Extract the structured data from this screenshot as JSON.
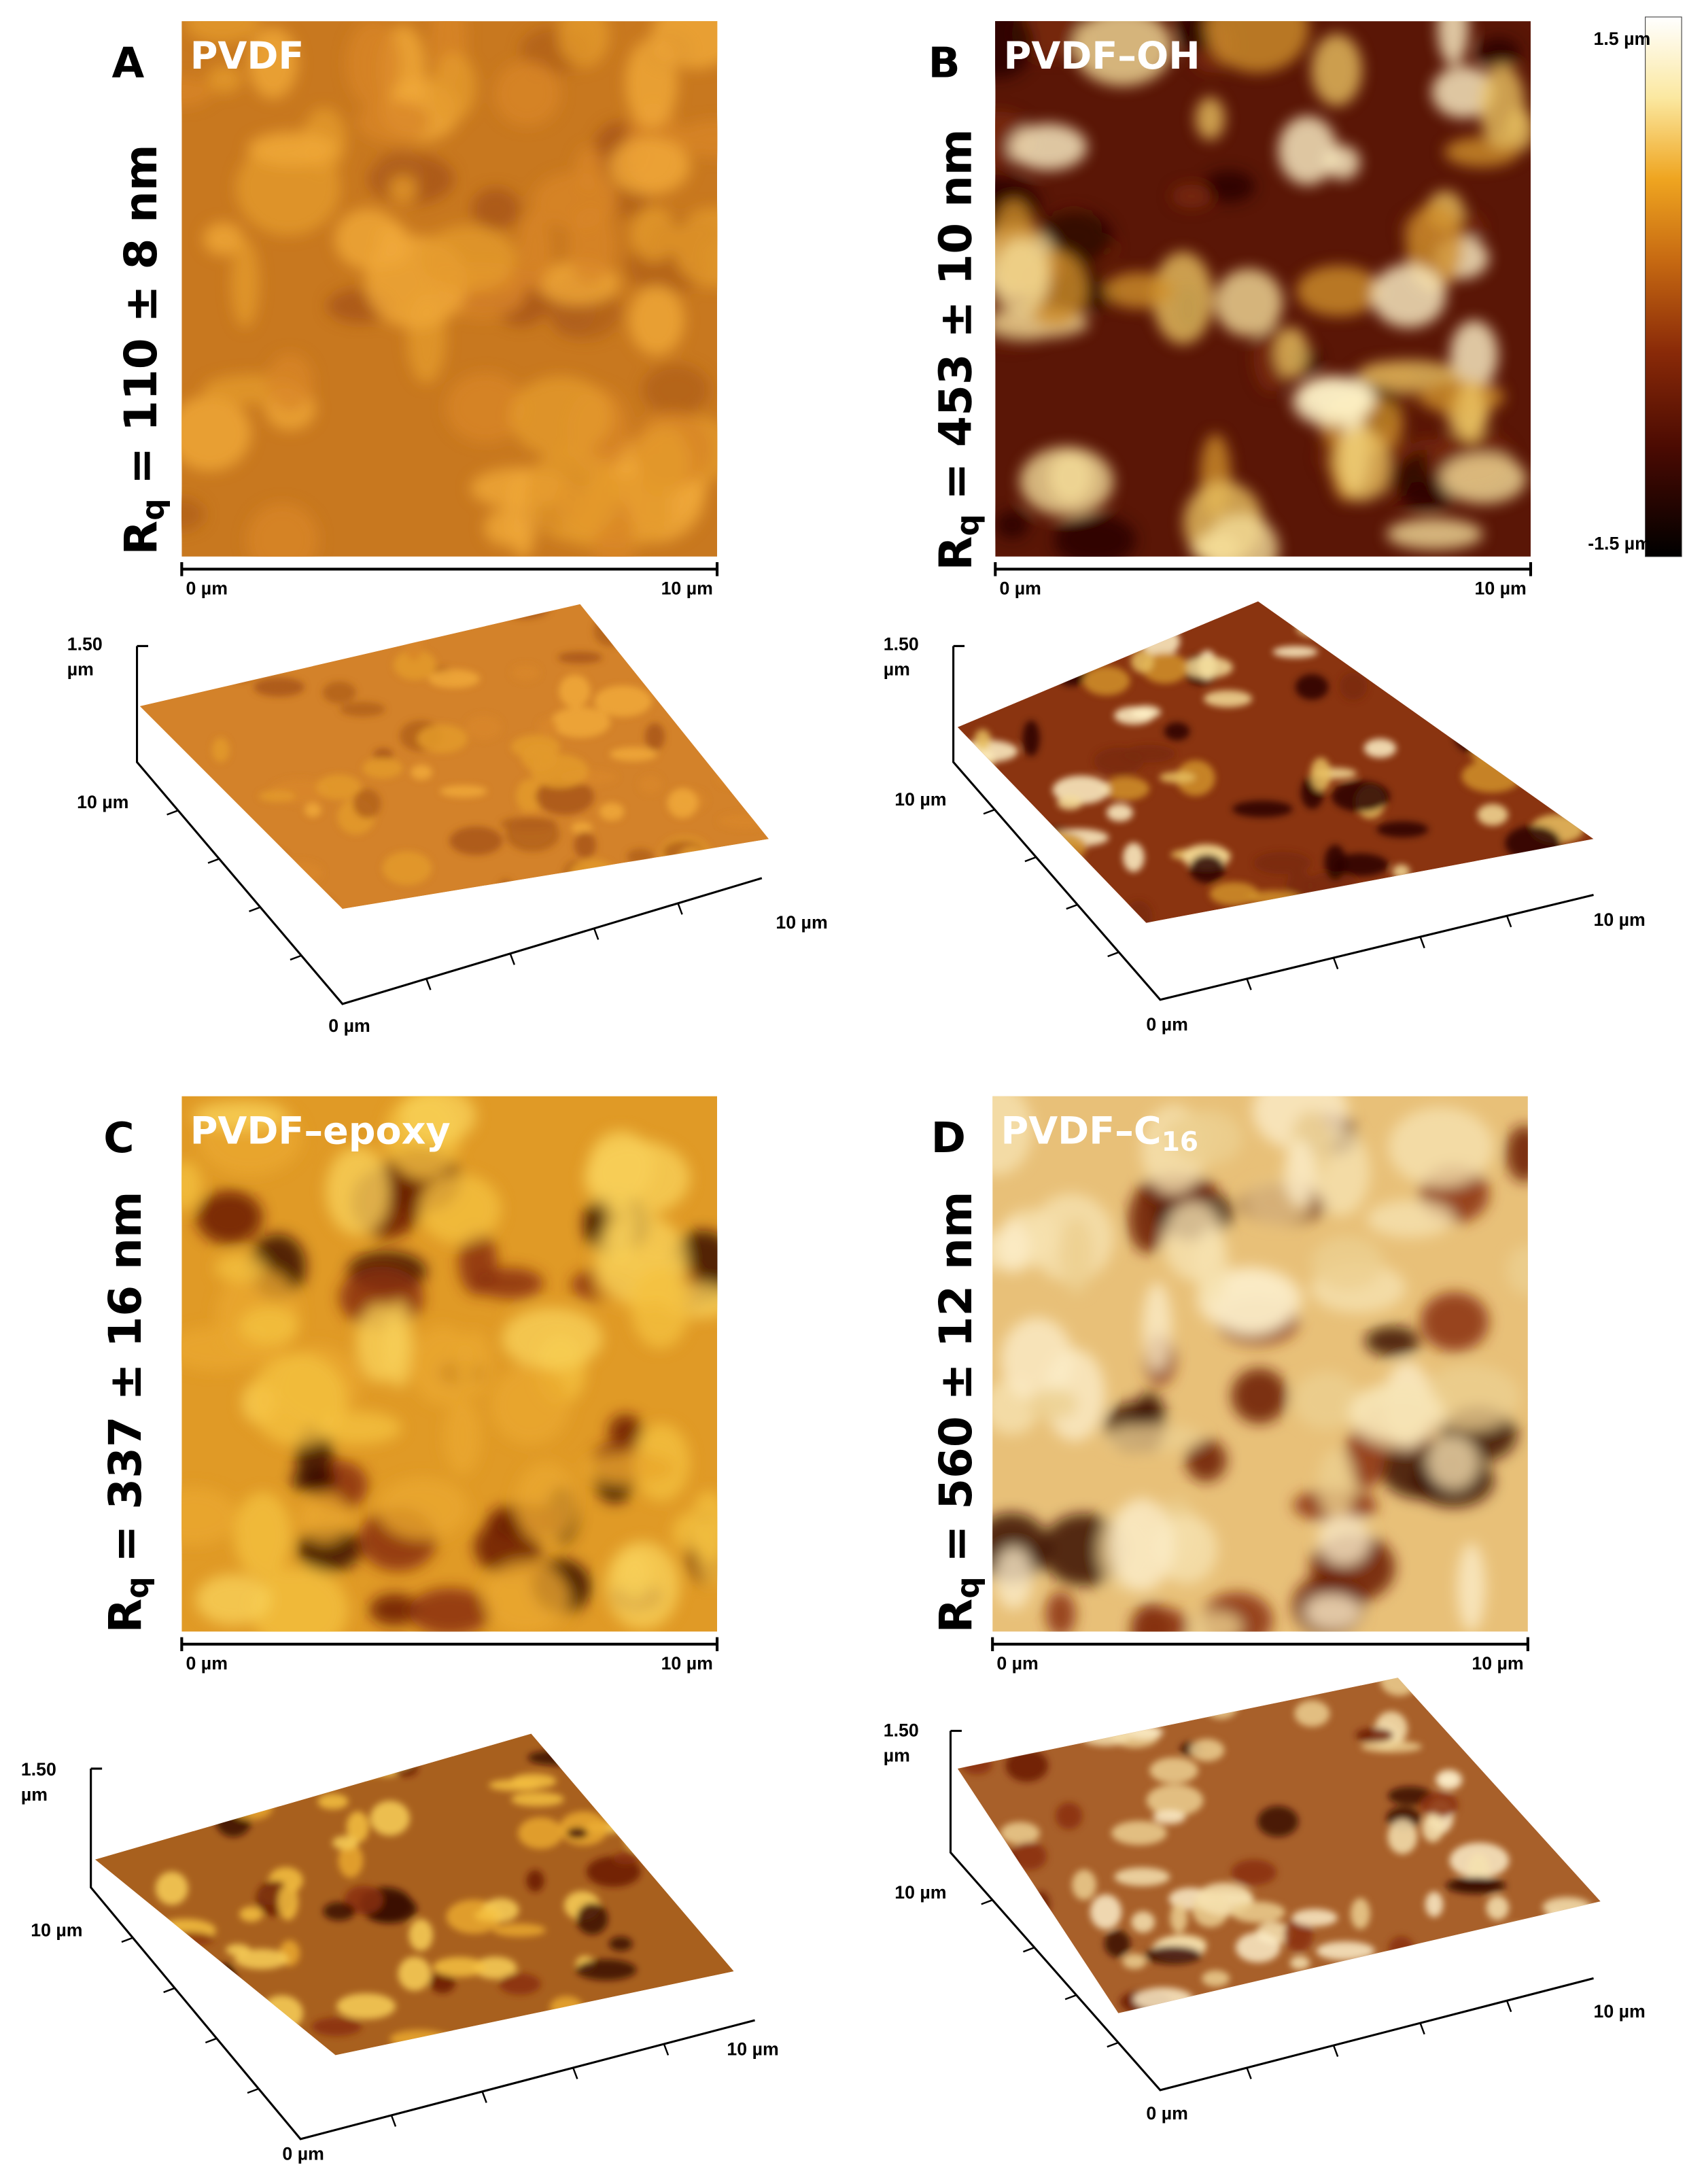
{
  "colorbar": {
    "top": "1.5 µm",
    "bottom": "-1.5 µm"
  },
  "panels": [
    {
      "letter": "A",
      "name": "PVDF",
      "rq": {
        "symbol": "R",
        "subscript": "q",
        "text": "= 110 ± 8 nm"
      },
      "scale_bar": [
        "0 µm",
        "10 µm"
      ],
      "surface": {
        "z_label": [
          "1.50",
          "µm"
        ],
        "y_label": "10 µm",
        "x_label": "10 µm",
        "origin": "0 µm"
      }
    },
    {
      "letter": "B",
      "name": "PVDF–OH",
      "rq": {
        "symbol": "R",
        "subscript": "q",
        "text": "= 453 ± 10 nm"
      },
      "scale_bar": [
        "0 µm",
        "10 µm"
      ],
      "surface": {
        "z_label": [
          "1.50",
          "µm"
        ],
        "y_label": "10 µm",
        "x_label": "10 µm",
        "origin": "0 µm"
      }
    },
    {
      "letter": "C",
      "name": "PVDF–epoxy",
      "rq": {
        "symbol": "R",
        "subscript": "q",
        "text": "= 337 ± 16 nm"
      },
      "scale_bar": [
        "0 µm",
        "10 µm"
      ],
      "surface": {
        "z_label": [
          "1.50",
          "µm"
        ],
        "y_label": "10 µm",
        "x_label": "10 µm",
        "origin": "0 µm"
      }
    },
    {
      "letter": "D",
      "name": "PVDF–C",
      "name_subscript": "16",
      "rq": {
        "symbol": "R",
        "subscript": "q",
        "text": "= 560 ± 12 nm"
      },
      "scale_bar": [
        "0 µm",
        "10 µm"
      ],
      "surface": {
        "z_label": [
          "1.50",
          "µm"
        ],
        "y_label": "10 µm",
        "x_label": "10 µm",
        "origin": "0 µm"
      }
    }
  ]
}
